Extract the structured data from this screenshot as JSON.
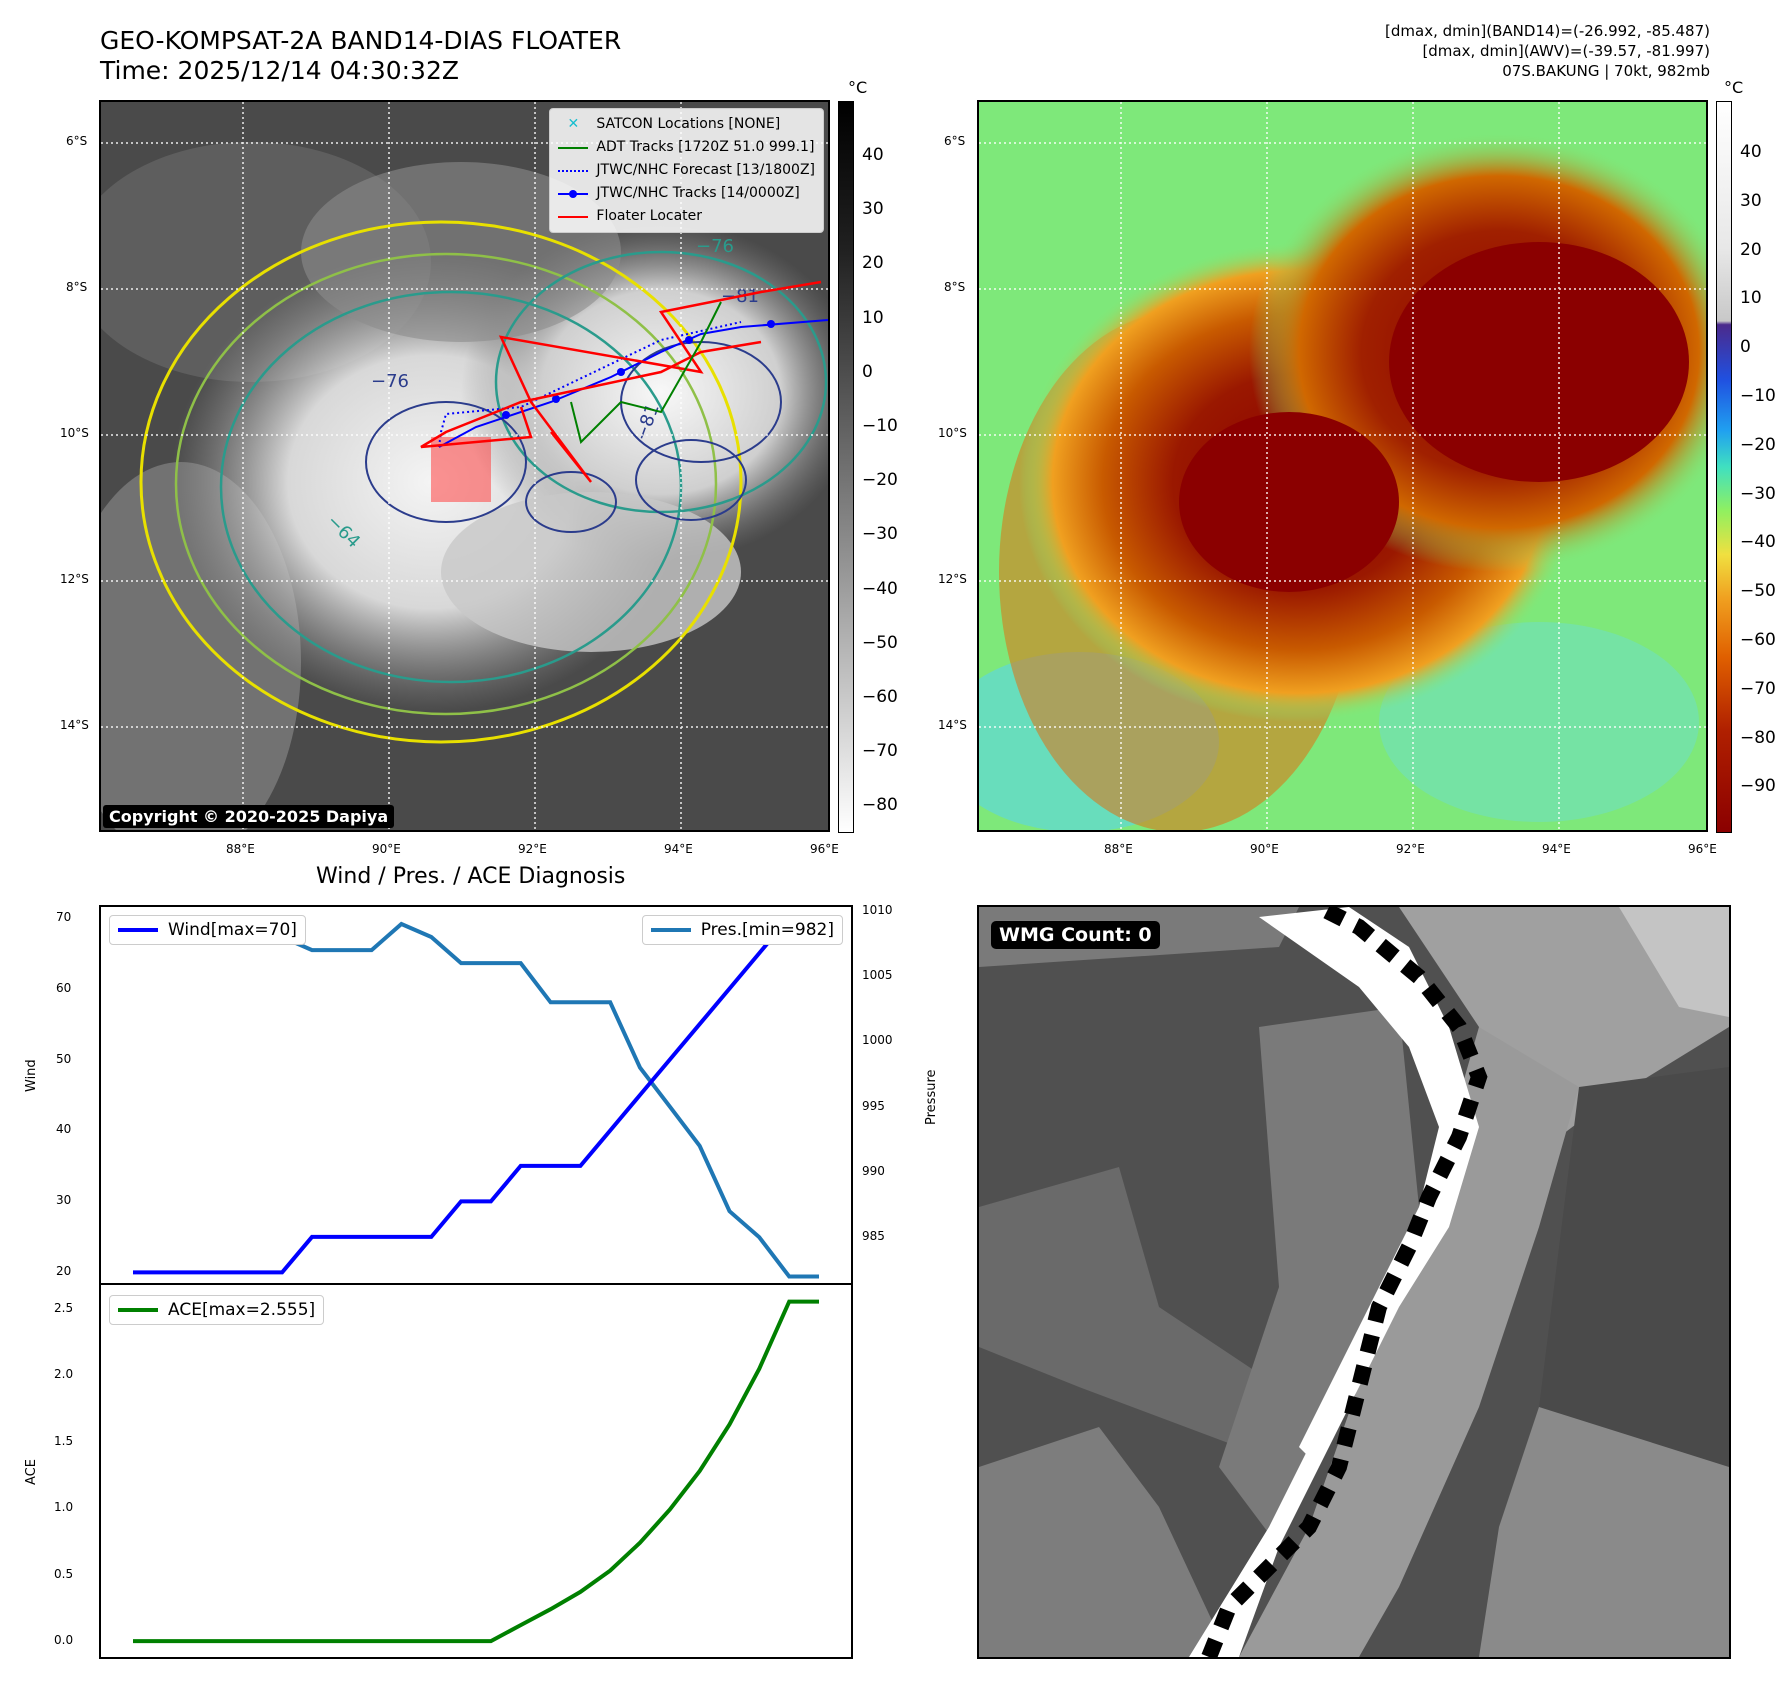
{
  "header": {
    "title_line1": "GEO-KOMPSAT-2A BAND14-DIAS FLOATER",
    "title_line2": "Time: 2025/12/14 04:30:32Z",
    "info_line1": "[dmax, dmin](BAND14)=(-26.992, -85.487)",
    "info_line2": "[dmax, dmin](AWV)=(-39.57, -81.997)",
    "info_line3": "07S.BAKUNG | 70kt, 982mb"
  },
  "map": {
    "lat_ticks": [
      "6°S",
      "8°S",
      "10°S",
      "12°S",
      "14°S"
    ],
    "lon_ticks": [
      "88°E",
      "90°E",
      "92°E",
      "94°E",
      "96°E"
    ],
    "contour_labels": [
      "−76",
      "−76",
      "−64",
      "−81",
      "−81"
    ],
    "copyright": "Copyright © 2020-2025 Dapiya",
    "legend": [
      {
        "label": "SATCON Locations [NONE]",
        "color": "#17becf",
        "style": "x"
      },
      {
        "label": "ADT Tracks [1720Z 51.0 999.1]",
        "color": "#008000",
        "style": "solid"
      },
      {
        "label": "JTWC/NHC Forecast [13/1800Z]",
        "color": "#0000ff",
        "style": "dotted"
      },
      {
        "label": "JTWC/NHC Tracks [14/0000Z]",
        "color": "#0000ff",
        "style": "dot-line"
      },
      {
        "label": "Floater Locater",
        "color": "#ff0000",
        "style": "solid"
      }
    ]
  },
  "colorbar_gray": {
    "unit": "°C",
    "ticks": [
      "40",
      "30",
      "20",
      "10",
      "0",
      "−10",
      "−20",
      "−30",
      "−40",
      "−50",
      "−60",
      "−70",
      "−80"
    ]
  },
  "colorbar_color": {
    "unit": "°C",
    "ticks": [
      "40",
      "30",
      "20",
      "10",
      "0",
      "−10",
      "−20",
      "−30",
      "−40",
      "−50",
      "−60",
      "−70",
      "−80",
      "−90"
    ]
  },
  "diag": {
    "title": "Wind / Pres. / ACE Diagnosis",
    "wind_label": "Wind",
    "pres_label": "Pressure",
    "ace_label": "ACE",
    "wind_legend": "Wind[max=70]",
    "pres_legend": "Pres.[min=982]",
    "ace_legend": "ACE[max=2.555]",
    "wind_ticks": [
      "70",
      "60",
      "50",
      "40",
      "30",
      "20"
    ],
    "pres_ticks": [
      "1010",
      "1005",
      "1000",
      "995",
      "990",
      "985"
    ],
    "ace_ticks": [
      "2.5",
      "2.0",
      "1.5",
      "1.0",
      "0.5",
      "0.0"
    ]
  },
  "wmg": {
    "label": "WMG Count: 0"
  },
  "chart_data": [
    {
      "type": "line",
      "name": "wind",
      "x": [
        0,
        1,
        2,
        3,
        4,
        5,
        6,
        7,
        8,
        9,
        10,
        11,
        12,
        13,
        14,
        15,
        16,
        17,
        18,
        19,
        20,
        21,
        22,
        23
      ],
      "series": [
        {
          "name": "Wind[max=70]",
          "values": [
            20,
            20,
            20,
            20,
            20,
            20,
            25,
            25,
            25,
            25,
            25,
            30,
            30,
            35,
            35,
            35,
            40,
            45,
            50,
            55,
            60,
            65,
            70,
            70
          ]
        }
      ],
      "ylabel": "Wind",
      "ylim": [
        18.5,
        71.5
      ],
      "color": "#0000ff"
    },
    {
      "type": "line",
      "name": "pressure",
      "x": [
        0,
        1,
        2,
        3,
        4,
        5,
        6,
        7,
        8,
        9,
        10,
        11,
        12,
        13,
        14,
        15,
        16,
        17,
        18,
        19,
        20,
        21,
        22,
        23
      ],
      "series": [
        {
          "name": "Pres.[min=982]",
          "values": [
            1008,
            1008,
            1008,
            1008,
            1008,
            1008,
            1007,
            1007,
            1007,
            1009,
            1008,
            1006,
            1006,
            1006,
            1003,
            1003,
            1003,
            998,
            995,
            992,
            987,
            985,
            982,
            982
          ]
        }
      ],
      "ylabel": "Pressure",
      "ylim": [
        981.5,
        1010.3
      ],
      "color": "#1f77b4"
    },
    {
      "type": "line",
      "name": "ace",
      "x": [
        0,
        1,
        2,
        3,
        4,
        5,
        6,
        7,
        8,
        9,
        10,
        11,
        12,
        13,
        14,
        15,
        16,
        17,
        18,
        19,
        20,
        21,
        22,
        23
      ],
      "series": [
        {
          "name": "ACE[max=2.555]",
          "values": [
            0,
            0,
            0,
            0,
            0,
            0,
            0,
            0,
            0,
            0,
            0,
            0,
            0.0,
            0.12,
            0.24,
            0.37,
            0.53,
            0.74,
            0.99,
            1.28,
            1.63,
            2.05,
            2.555,
            2.555
          ]
        }
      ],
      "ylabel": "ACE",
      "ylim": [
        -0.12,
        2.68
      ],
      "color": "#008000"
    }
  ]
}
